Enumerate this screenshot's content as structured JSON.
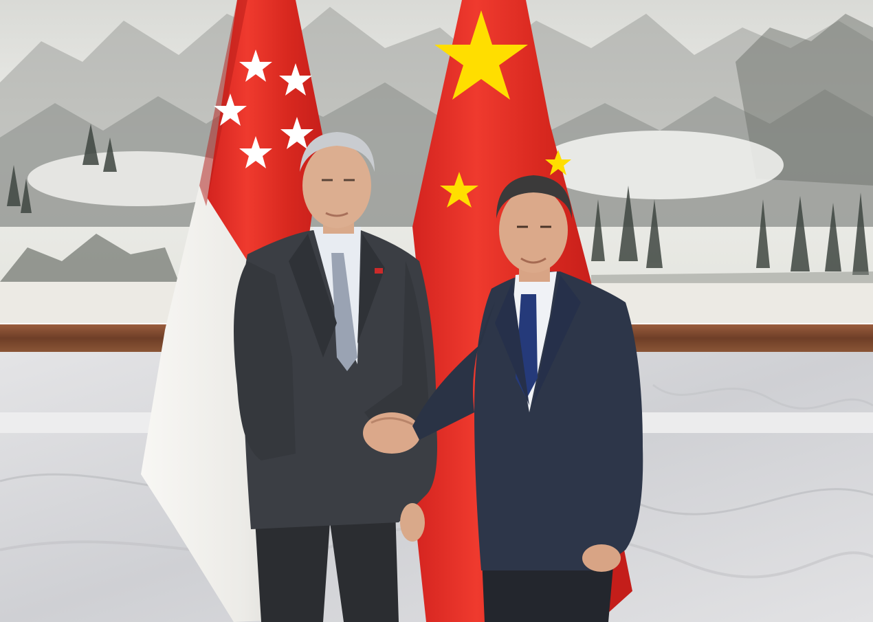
{
  "photo": {
    "subject": "",
    "colors": {
      "flag_red": "#E5302A",
      "flag_white": "#F6F4F0",
      "star_yellow": "#FFDE00",
      "suit_grey": "#3A3D42",
      "suit_navy": "#2C3648",
      "wood_rail": "#7E4A30",
      "marble": "#D8D8DA",
      "painting_bg": "#E9EAE6"
    },
    "icons": [
      "singapore-flag",
      "china-flag"
    ]
  }
}
